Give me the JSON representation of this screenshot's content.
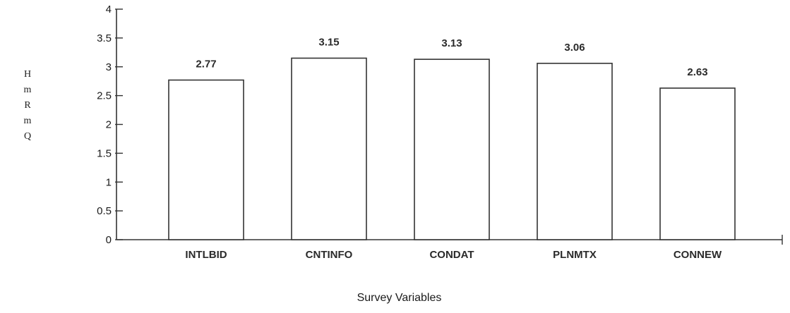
{
  "chart_data": {
    "type": "bar",
    "title": "",
    "xlabel": "Survey Variables",
    "ylabel": "H\nm\nR\nm\nQ",
    "categories": [
      "INTLBID",
      "CNTINFO",
      "CONDAT",
      "PLNMTX",
      "CONNEW"
    ],
    "values": [
      2.77,
      3.15,
      3.13,
      3.06,
      2.63
    ],
    "data_labels": [
      "2.77",
      "3.15",
      "3.13",
      "3.06",
      "2.63"
    ],
    "ylim": [
      0,
      4
    ],
    "yticks": [
      "0",
      "0.5",
      "1",
      "1.5",
      "2",
      "2.5",
      "3",
      "3.5",
      "4"
    ],
    "grid": false,
    "legend": "none",
    "bar_fill": "#ffffff",
    "bar_stroke": "#333333"
  }
}
